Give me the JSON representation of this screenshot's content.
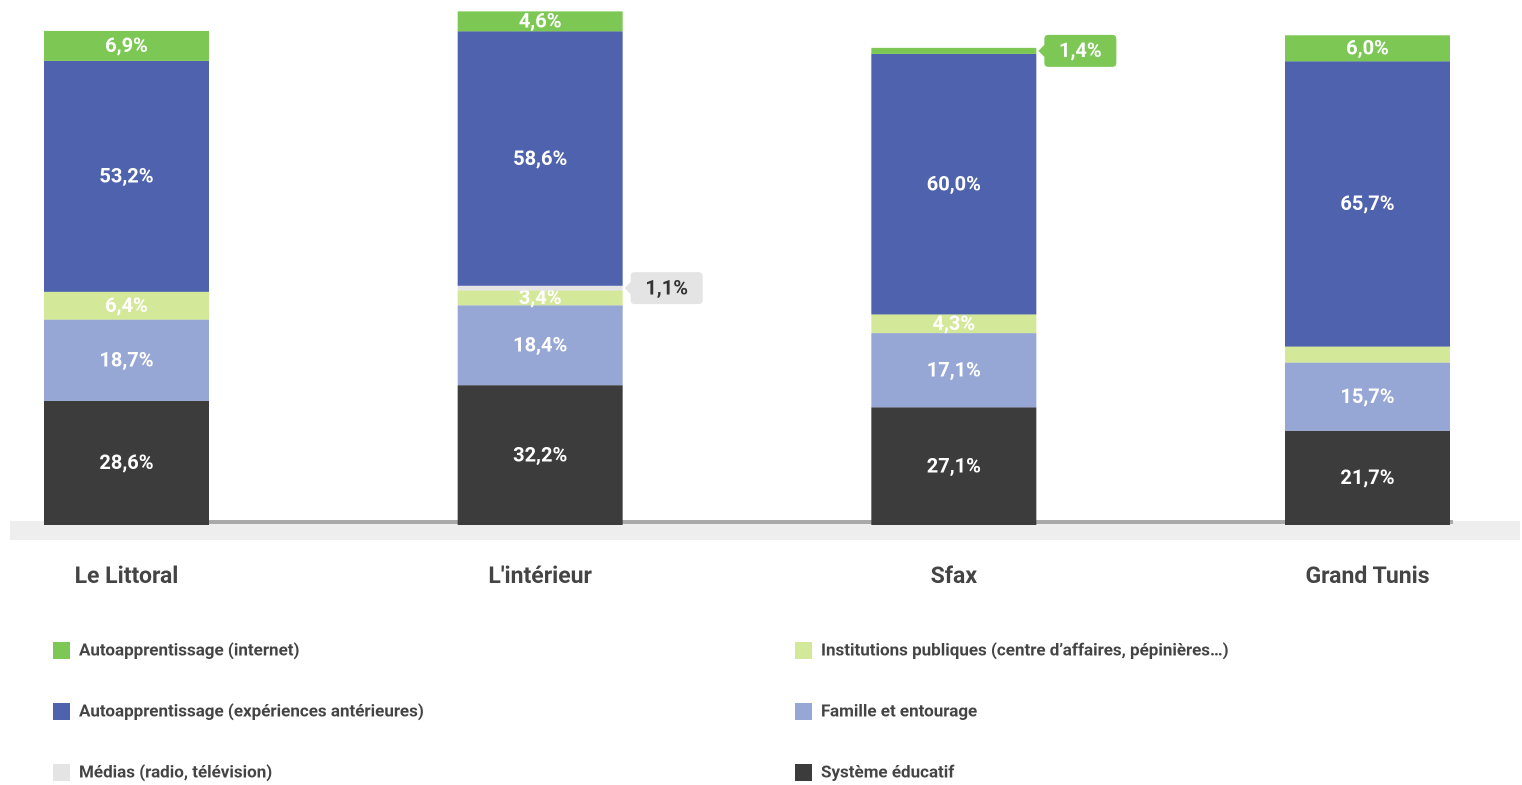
{
  "chart_data": {
    "type": "stacked_bar",
    "categories": [
      "Le Littoral",
      "L'intérieur",
      "Sfax",
      "Grand Tunis"
    ],
    "series": [
      {
        "name": "Autoapprentissage (internet)",
        "color": "#7dc855",
        "values": [
          6.9,
          4.6,
          1.4,
          6.0
        ],
        "value_labels": [
          "6,9%",
          "4,6%",
          "1,4%",
          "6,0%"
        ]
      },
      {
        "name": "Autoapprentissage (expériences antérieures)",
        "color": "#4f62ad",
        "values": [
          53.2,
          58.6,
          60.0,
          65.7
        ],
        "value_labels": [
          "53,2%",
          "58,6%",
          "60,0%",
          "65,7%"
        ]
      },
      {
        "name": "Médias (radio, télévision)",
        "color": "#e4e4e4",
        "values": [
          null,
          1.1,
          null,
          null
        ],
        "value_labels": [
          null,
          "1,1%",
          null,
          null
        ]
      },
      {
        "name": "Institutions publiques (centre d’affaires, pépinières…)",
        "color": "#d4e89a",
        "values": [
          6.4,
          3.4,
          4.3,
          3.7
        ],
        "value_labels": [
          "6,4%",
          "3,4%",
          "4,3%",
          null
        ]
      },
      {
        "name": "Famille et entourage",
        "color": "#96a7d6",
        "values": [
          18.7,
          18.4,
          17.1,
          15.7
        ],
        "value_labels": [
          "18,7%",
          "18,4%",
          "17,1%",
          "15,7%"
        ]
      },
      {
        "name": "Système éducatif",
        "color": "#3c3c3c",
        "values": [
          28.6,
          32.2,
          27.1,
          21.7
        ],
        "value_labels": [
          "28,6%",
          "32,2%",
          "27,1%",
          "21,7%"
        ]
      }
    ],
    "ylim": [
      0,
      120
    ]
  }
}
